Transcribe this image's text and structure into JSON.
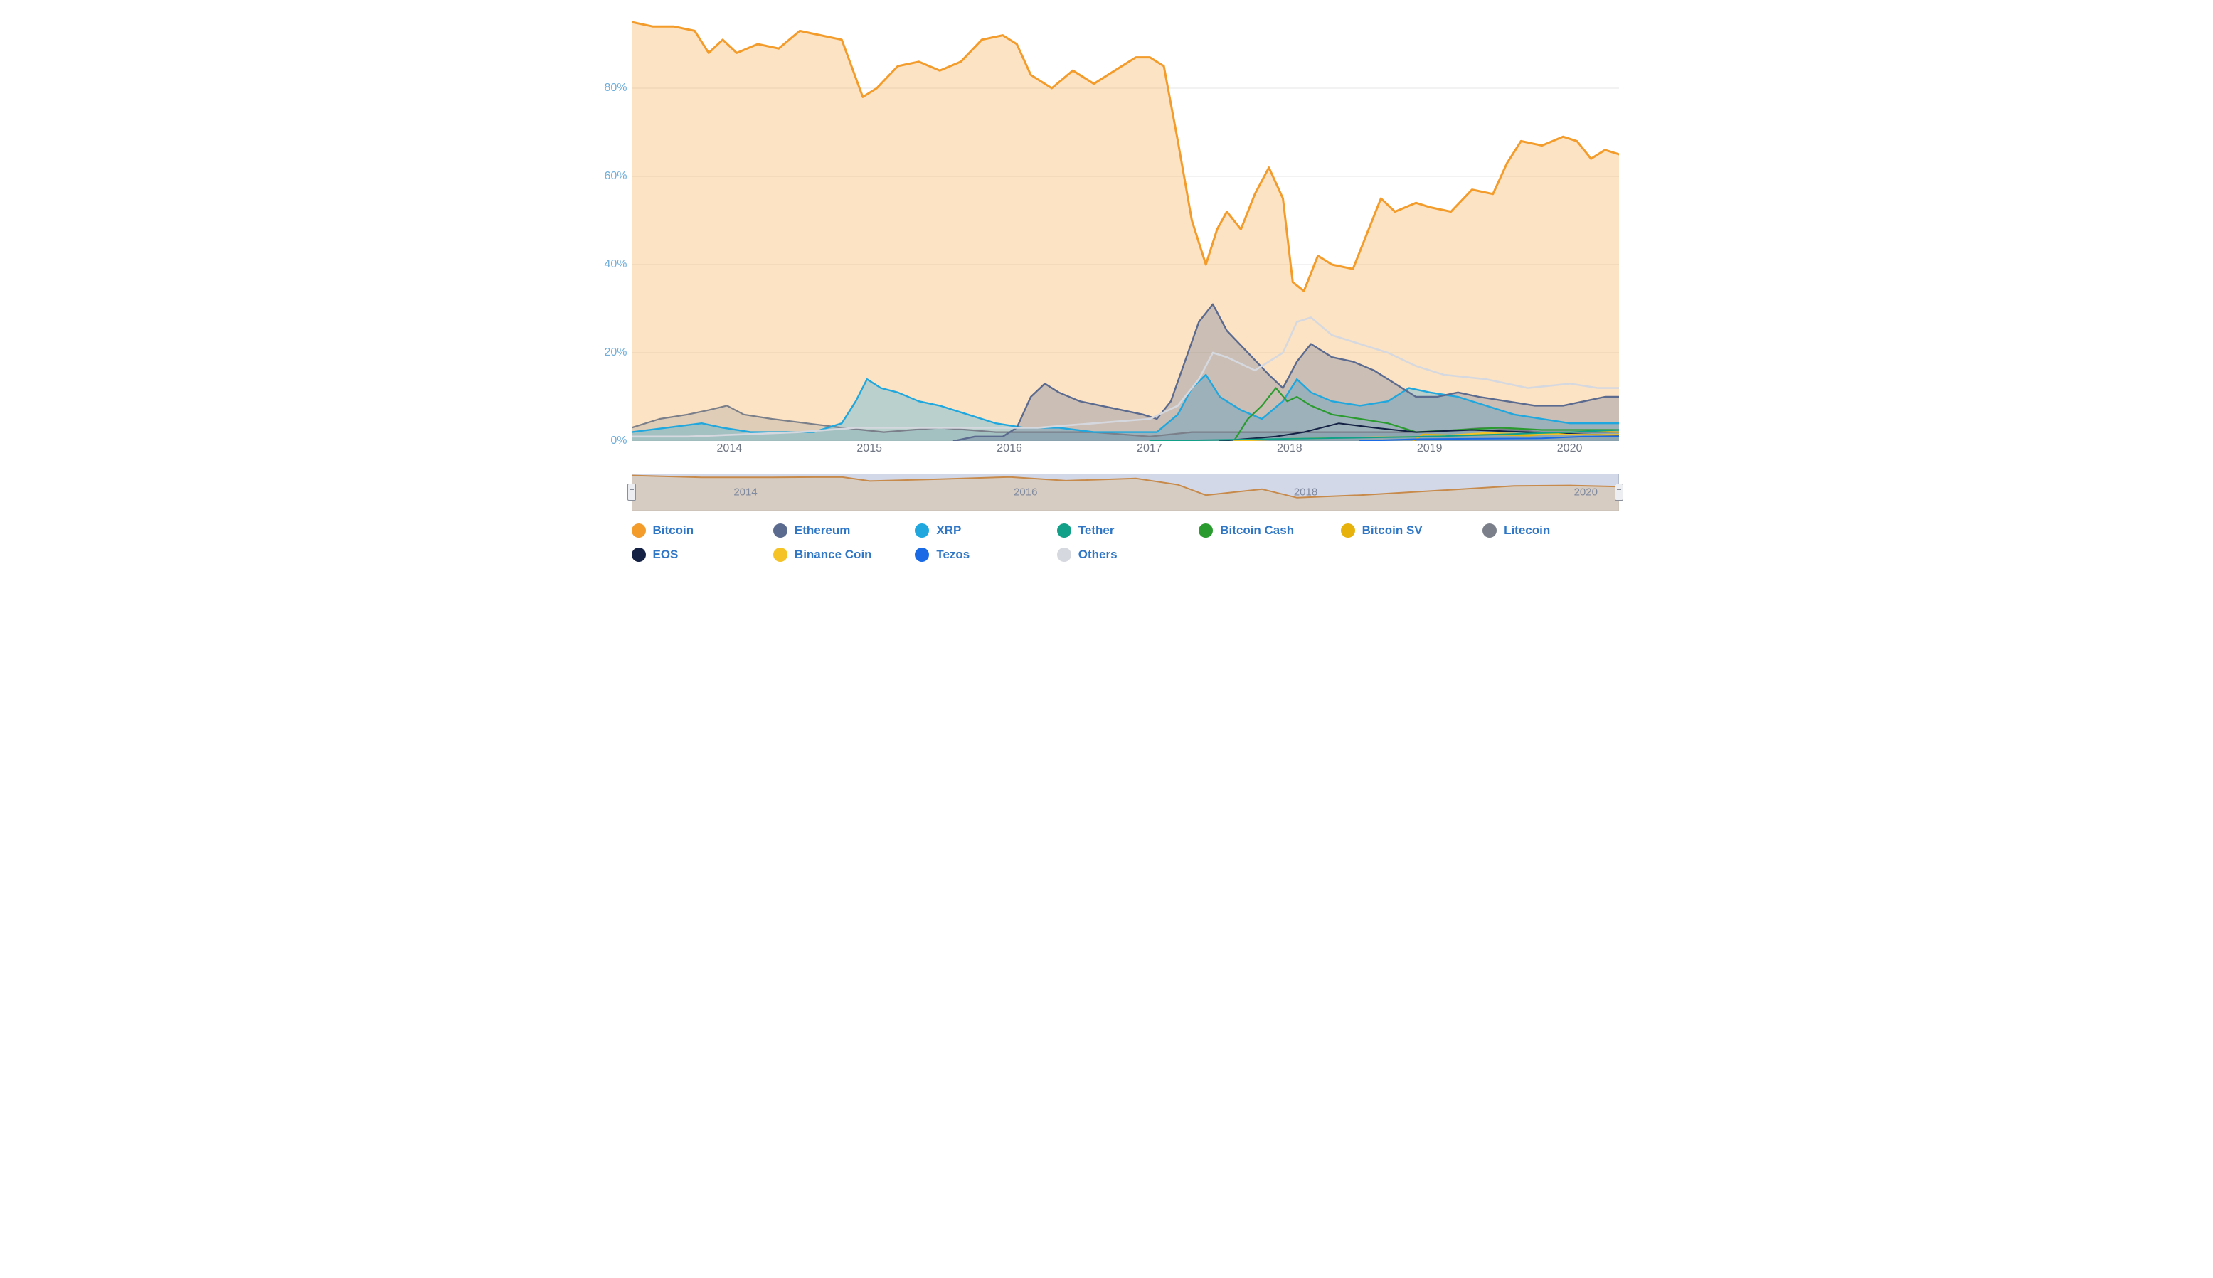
{
  "chart": {
    "type": "area-line",
    "background_color": "#ffffff",
    "grid_color": "#e5e5e5",
    "axis_label_color": "#6faedb",
    "xaxis_label_color": "#707684",
    "axis_fontsize": 16,
    "y": {
      "min": 0,
      "max": 100,
      "ticks": [
        0,
        20,
        40,
        60,
        80
      ],
      "suffix": "%"
    },
    "x": {
      "start": 2013.3,
      "end": 2020.35,
      "tick_years": [
        2014,
        2015,
        2016,
        2017,
        2018,
        2019,
        2020
      ]
    },
    "series": [
      {
        "id": "bitcoin",
        "name": "Bitcoin",
        "color": "#f39c2b",
        "line_width": 3,
        "fill_opacity": 0.28,
        "data": [
          [
            2013.3,
            95
          ],
          [
            2013.45,
            94
          ],
          [
            2013.6,
            94
          ],
          [
            2013.75,
            93
          ],
          [
            2013.85,
            88
          ],
          [
            2013.95,
            91
          ],
          [
            2014.05,
            88
          ],
          [
            2014.2,
            90
          ],
          [
            2014.35,
            89
          ],
          [
            2014.5,
            93
          ],
          [
            2014.65,
            92
          ],
          [
            2014.8,
            91
          ],
          [
            2014.95,
            78
          ],
          [
            2015.05,
            80
          ],
          [
            2015.2,
            85
          ],
          [
            2015.35,
            86
          ],
          [
            2015.5,
            84
          ],
          [
            2015.65,
            86
          ],
          [
            2015.8,
            91
          ],
          [
            2015.95,
            92
          ],
          [
            2016.05,
            90
          ],
          [
            2016.15,
            83
          ],
          [
            2016.3,
            80
          ],
          [
            2016.45,
            84
          ],
          [
            2016.6,
            81
          ],
          [
            2016.75,
            84
          ],
          [
            2016.9,
            87
          ],
          [
            2017.0,
            87
          ],
          [
            2017.1,
            85
          ],
          [
            2017.2,
            68
          ],
          [
            2017.3,
            50
          ],
          [
            2017.4,
            40
          ],
          [
            2017.48,
            48
          ],
          [
            2017.55,
            52
          ],
          [
            2017.65,
            48
          ],
          [
            2017.75,
            56
          ],
          [
            2017.85,
            62
          ],
          [
            2017.95,
            55
          ],
          [
            2018.02,
            36
          ],
          [
            2018.1,
            34
          ],
          [
            2018.2,
            42
          ],
          [
            2018.3,
            40
          ],
          [
            2018.45,
            39
          ],
          [
            2018.55,
            47
          ],
          [
            2018.65,
            55
          ],
          [
            2018.75,
            52
          ],
          [
            2018.9,
            54
          ],
          [
            2019.0,
            53
          ],
          [
            2019.15,
            52
          ],
          [
            2019.3,
            57
          ],
          [
            2019.45,
            56
          ],
          [
            2019.55,
            63
          ],
          [
            2019.65,
            68
          ],
          [
            2019.8,
            67
          ],
          [
            2019.95,
            69
          ],
          [
            2020.05,
            68
          ],
          [
            2020.15,
            64
          ],
          [
            2020.25,
            66
          ],
          [
            2020.35,
            65
          ]
        ]
      },
      {
        "id": "ethereum",
        "name": "Ethereum",
        "color": "#5b6a8f",
        "line_width": 2.4,
        "fill_opacity": 0.3,
        "data": [
          [
            2015.6,
            0
          ],
          [
            2015.75,
            1
          ],
          [
            2015.95,
            1
          ],
          [
            2016.05,
            3
          ],
          [
            2016.15,
            10
          ],
          [
            2016.25,
            13
          ],
          [
            2016.35,
            11
          ],
          [
            2016.5,
            9
          ],
          [
            2016.65,
            8
          ],
          [
            2016.8,
            7
          ],
          [
            2016.95,
            6
          ],
          [
            2017.05,
            5
          ],
          [
            2017.15,
            9
          ],
          [
            2017.25,
            18
          ],
          [
            2017.35,
            27
          ],
          [
            2017.45,
            31
          ],
          [
            2017.55,
            25
          ],
          [
            2017.7,
            20
          ],
          [
            2017.85,
            15
          ],
          [
            2017.95,
            12
          ],
          [
            2018.05,
            18
          ],
          [
            2018.15,
            22
          ],
          [
            2018.3,
            19
          ],
          [
            2018.45,
            18
          ],
          [
            2018.6,
            16
          ],
          [
            2018.75,
            13
          ],
          [
            2018.9,
            10
          ],
          [
            2019.05,
            10
          ],
          [
            2019.2,
            11
          ],
          [
            2019.35,
            10
          ],
          [
            2019.55,
            9
          ],
          [
            2019.75,
            8
          ],
          [
            2019.95,
            8
          ],
          [
            2020.1,
            9
          ],
          [
            2020.25,
            10
          ],
          [
            2020.35,
            10
          ]
        ]
      },
      {
        "id": "xrp",
        "name": "XRP",
        "color": "#1fa7de",
        "line_width": 2.4,
        "fill_opacity": 0.3,
        "data": [
          [
            2013.3,
            2
          ],
          [
            2013.55,
            3
          ],
          [
            2013.8,
            4
          ],
          [
            2013.95,
            3
          ],
          [
            2014.15,
            2
          ],
          [
            2014.4,
            2
          ],
          [
            2014.6,
            2
          ],
          [
            2014.8,
            4
          ],
          [
            2014.9,
            9
          ],
          [
            2014.98,
            14
          ],
          [
            2015.08,
            12
          ],
          [
            2015.2,
            11
          ],
          [
            2015.35,
            9
          ],
          [
            2015.5,
            8
          ],
          [
            2015.7,
            6
          ],
          [
            2015.9,
            4
          ],
          [
            2016.1,
            3
          ],
          [
            2016.35,
            3
          ],
          [
            2016.6,
            2
          ],
          [
            2016.9,
            2
          ],
          [
            2017.05,
            2
          ],
          [
            2017.2,
            6
          ],
          [
            2017.3,
            12
          ],
          [
            2017.4,
            15
          ],
          [
            2017.5,
            10
          ],
          [
            2017.65,
            7
          ],
          [
            2017.8,
            5
          ],
          [
            2017.95,
            9
          ],
          [
            2018.05,
            14
          ],
          [
            2018.15,
            11
          ],
          [
            2018.3,
            9
          ],
          [
            2018.5,
            8
          ],
          [
            2018.7,
            9
          ],
          [
            2018.85,
            12
          ],
          [
            2019.0,
            11
          ],
          [
            2019.2,
            10
          ],
          [
            2019.4,
            8
          ],
          [
            2019.6,
            6
          ],
          [
            2019.8,
            5
          ],
          [
            2020.0,
            4
          ],
          [
            2020.2,
            4
          ],
          [
            2020.35,
            4
          ]
        ]
      },
      {
        "id": "tether",
        "name": "Tether",
        "color": "#12a088",
        "line_width": 2,
        "fill_opacity": 0.0,
        "data": [
          [
            2017.0,
            0
          ],
          [
            2018.0,
            0.5
          ],
          [
            2019.0,
            1
          ],
          [
            2019.5,
            1.5
          ],
          [
            2020.0,
            2
          ],
          [
            2020.35,
            2.5
          ]
        ]
      },
      {
        "id": "bitcoincash",
        "name": "Bitcoin Cash",
        "color": "#2a9b2f",
        "line_width": 2.2,
        "fill_opacity": 0.0,
        "data": [
          [
            2017.6,
            0
          ],
          [
            2017.7,
            5
          ],
          [
            2017.8,
            8
          ],
          [
            2017.9,
            12
          ],
          [
            2017.98,
            9
          ],
          [
            2018.05,
            10
          ],
          [
            2018.15,
            8
          ],
          [
            2018.3,
            6
          ],
          [
            2018.5,
            5
          ],
          [
            2018.7,
            4
          ],
          [
            2018.9,
            2
          ],
          [
            2019.2,
            2.5
          ],
          [
            2019.5,
            3
          ],
          [
            2019.8,
            2.5
          ],
          [
            2020.1,
            2.5
          ],
          [
            2020.35,
            2.5
          ]
        ]
      },
      {
        "id": "bitcoinsv",
        "name": "Bitcoin SV",
        "color": "#e8b20c",
        "line_width": 2,
        "fill_opacity": 0.0,
        "data": [
          [
            2018.88,
            0
          ],
          [
            2018.95,
            1.5
          ],
          [
            2019.15,
            1.3
          ],
          [
            2019.4,
            1.5
          ],
          [
            2019.7,
            1.2
          ],
          [
            2020.0,
            2
          ],
          [
            2020.15,
            2.2
          ],
          [
            2020.35,
            2
          ]
        ]
      },
      {
        "id": "litecoin",
        "name": "Litecoin",
        "color": "#7a7f89",
        "line_width": 2.2,
        "fill_opacity": 0.22,
        "data": [
          [
            2013.3,
            3
          ],
          [
            2013.5,
            5
          ],
          [
            2013.7,
            6
          ],
          [
            2013.85,
            7
          ],
          [
            2013.98,
            8
          ],
          [
            2014.1,
            6
          ],
          [
            2014.3,
            5
          ],
          [
            2014.55,
            4
          ],
          [
            2014.8,
            3
          ],
          [
            2015.1,
            2
          ],
          [
            2015.5,
            3
          ],
          [
            2015.9,
            2
          ],
          [
            2016.2,
            2
          ],
          [
            2016.6,
            2
          ],
          [
            2017.0,
            1
          ],
          [
            2017.3,
            2
          ],
          [
            2017.6,
            2
          ],
          [
            2017.9,
            2
          ],
          [
            2018.2,
            2
          ],
          [
            2018.6,
            2
          ],
          [
            2019.0,
            2
          ],
          [
            2019.4,
            3
          ],
          [
            2019.8,
            2
          ],
          [
            2020.2,
            2
          ],
          [
            2020.35,
            2
          ]
        ]
      },
      {
        "id": "eos",
        "name": "EOS",
        "color": "#142044",
        "line_width": 2,
        "fill_opacity": 0.0,
        "data": [
          [
            2017.5,
            0
          ],
          [
            2017.9,
            1
          ],
          [
            2018.1,
            2
          ],
          [
            2018.35,
            4
          ],
          [
            2018.6,
            3
          ],
          [
            2018.9,
            2
          ],
          [
            2019.3,
            2.5
          ],
          [
            2019.7,
            2
          ],
          [
            2020.1,
            1.5
          ],
          [
            2020.35,
            1.3
          ]
        ]
      },
      {
        "id": "binancecoin",
        "name": "Binance Coin",
        "color": "#f5c326",
        "line_width": 2,
        "fill_opacity": 0.0,
        "data": [
          [
            2017.6,
            0
          ],
          [
            2018.0,
            0.5
          ],
          [
            2018.5,
            0.8
          ],
          [
            2019.0,
            1
          ],
          [
            2019.4,
            1.8
          ],
          [
            2019.8,
            1.5
          ],
          [
            2020.2,
            1.4
          ],
          [
            2020.35,
            1.4
          ]
        ]
      },
      {
        "id": "tezos",
        "name": "Tezos",
        "color": "#1b6ae5",
        "line_width": 2,
        "fill_opacity": 0.0,
        "data": [
          [
            2018.5,
            0
          ],
          [
            2018.9,
            0.4
          ],
          [
            2019.3,
            0.5
          ],
          [
            2019.8,
            0.6
          ],
          [
            2020.1,
            1
          ],
          [
            2020.35,
            1
          ]
        ]
      },
      {
        "id": "others",
        "name": "Others",
        "color": "#d6d8df",
        "line_width": 2.6,
        "fill_opacity": 0.0,
        "data": [
          [
            2013.3,
            1
          ],
          [
            2013.7,
            1
          ],
          [
            2014.1,
            1.5
          ],
          [
            2014.5,
            2
          ],
          [
            2014.9,
            3
          ],
          [
            2015.3,
            3
          ],
          [
            2015.8,
            3
          ],
          [
            2016.2,
            3
          ],
          [
            2016.6,
            4
          ],
          [
            2017.0,
            5
          ],
          [
            2017.2,
            8
          ],
          [
            2017.35,
            14
          ],
          [
            2017.45,
            20
          ],
          [
            2017.55,
            19
          ],
          [
            2017.75,
            16
          ],
          [
            2017.95,
            20
          ],
          [
            2018.05,
            27
          ],
          [
            2018.15,
            28
          ],
          [
            2018.3,
            24
          ],
          [
            2018.5,
            22
          ],
          [
            2018.7,
            20
          ],
          [
            2018.9,
            17
          ],
          [
            2019.1,
            15
          ],
          [
            2019.4,
            14
          ],
          [
            2019.7,
            12
          ],
          [
            2020.0,
            13
          ],
          [
            2020.2,
            12
          ],
          [
            2020.35,
            12
          ]
        ]
      }
    ]
  },
  "navigator": {
    "background_color": "#aeb8d6",
    "background_opacity": 0.55,
    "line_color": "#c78a4a",
    "border_color": "#9aa2b5",
    "handle_color": "#eceef2",
    "tick_color": "#7f8aa0",
    "tick_years": [
      2014,
      2016,
      2018,
      2020
    ],
    "data": [
      [
        2013.3,
        95
      ],
      [
        2013.8,
        90
      ],
      [
        2014.3,
        90
      ],
      [
        2014.8,
        91
      ],
      [
        2015.0,
        80
      ],
      [
        2015.5,
        85
      ],
      [
        2016.0,
        91
      ],
      [
        2016.4,
        81
      ],
      [
        2016.9,
        87
      ],
      [
        2017.2,
        70
      ],
      [
        2017.4,
        42
      ],
      [
        2017.8,
        58
      ],
      [
        2018.05,
        35
      ],
      [
        2018.5,
        42
      ],
      [
        2019.0,
        53
      ],
      [
        2019.6,
        67
      ],
      [
        2020.0,
        68
      ],
      [
        2020.35,
        65
      ]
    ]
  },
  "legend": {
    "label_color": "#2f77c6",
    "label_fontsize": 17,
    "dot_size": 20,
    "items": [
      {
        "id": "bitcoin",
        "label": "Bitcoin",
        "color": "#f39c2b"
      },
      {
        "id": "ethereum",
        "label": "Ethereum",
        "color": "#5b6a8f"
      },
      {
        "id": "xrp",
        "label": "XRP",
        "color": "#1fa7de"
      },
      {
        "id": "tether",
        "label": "Tether",
        "color": "#12a088"
      },
      {
        "id": "bitcoincash",
        "label": "Bitcoin Cash",
        "color": "#2a9b2f"
      },
      {
        "id": "bitcoinsv",
        "label": "Bitcoin SV",
        "color": "#e8b20c"
      },
      {
        "id": "litecoin",
        "label": "Litecoin",
        "color": "#7a7f89"
      },
      {
        "id": "eos",
        "label": "EOS",
        "color": "#142044"
      },
      {
        "id": "binancecoin",
        "label": "Binance Coin",
        "color": "#f5c326"
      },
      {
        "id": "tezos",
        "label": "Tezos",
        "color": "#1b6ae5"
      },
      {
        "id": "others",
        "label": "Others",
        "color": "#d6d8df"
      }
    ]
  }
}
